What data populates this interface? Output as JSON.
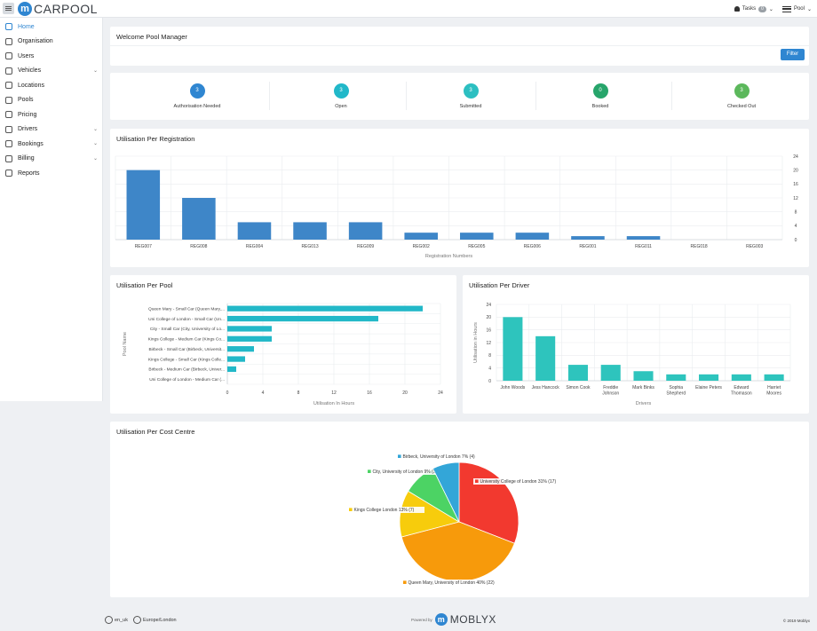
{
  "header": {
    "logo_letter": "m",
    "logo_text": "CARPOOL",
    "tasks_label": "Tasks",
    "tasks_count": "0",
    "tasks_chevron": "⌄",
    "pool_label": "Pool",
    "pool_chevron": "⌄"
  },
  "sidebar": {
    "items": [
      {
        "label": "Home",
        "icon": "home-icon",
        "active": true,
        "chevron": ""
      },
      {
        "label": "Organisation",
        "icon": "building-icon",
        "chevron": ""
      },
      {
        "label": "Users",
        "icon": "user-icon",
        "chevron": ""
      },
      {
        "label": "Vehicles",
        "icon": "car-icon",
        "chevron": "⌄"
      },
      {
        "label": "Locations",
        "icon": "location-pin-icon",
        "chevron": ""
      },
      {
        "label": "Pools",
        "icon": "car-icon",
        "chevron": ""
      },
      {
        "label": "Pricing",
        "icon": "card-icon",
        "chevron": ""
      },
      {
        "label": "Drivers",
        "icon": "users-icon",
        "chevron": "⌄"
      },
      {
        "label": "Bookings",
        "icon": "calendar-icon",
        "chevron": "⌄"
      },
      {
        "label": "Billing",
        "icon": "billing-icon",
        "chevron": "⌄"
      },
      {
        "label": "Reports",
        "icon": "chart-icon",
        "chevron": ""
      }
    ]
  },
  "welcome": {
    "title": "Welcome Pool Manager",
    "filter_label": "Filter"
  },
  "stats": [
    {
      "value": "3",
      "label": "Authorisation Needed",
      "color": "#2f86d1"
    },
    {
      "value": "3",
      "label": "Open",
      "color": "#21b8c9"
    },
    {
      "value": "3",
      "label": "Submitted",
      "color": "#2cbfc1"
    },
    {
      "value": "0",
      "label": "Booked",
      "color": "#27a56b"
    },
    {
      "value": "3",
      "label": "Checked Out",
      "color": "#5cb85c"
    }
  ],
  "colors": {
    "bar_blue": "#3e86c8",
    "bar_teal": "#22b8c8",
    "bar_driver": "#2ec4bd",
    "grid": "#e9ecef"
  },
  "chart_data": [
    {
      "type": "bar",
      "title": "Utilisation Per Registration",
      "xlabel": "Registration Numbers",
      "ylabel": "",
      "categories": [
        "REG007",
        "REG008",
        "REG004",
        "REG013",
        "REG009",
        "REG002",
        "REG005",
        "REG006",
        "REG001",
        "REG011",
        "REG018",
        "REG003"
      ],
      "values": [
        20,
        12,
        5,
        5,
        5,
        2,
        2,
        2,
        1,
        1,
        0,
        0
      ],
      "yticks": [
        "0",
        "4",
        "8",
        "12",
        "16",
        "20",
        "24"
      ],
      "ylim": [
        0,
        24
      ],
      "grid": true
    },
    {
      "type": "bar",
      "orientation": "horizontal",
      "title": "Utilisation Per Pool",
      "xlabel": "Utilisation In Hours",
      "ylabel": "Pool Name",
      "categories": [
        "Queen Mary - Small Car (Queen Mary,...",
        "Uni College of London - Small Car (Un...",
        "City - Small Car (City, University of Lo...",
        "Kings College - Medium Car (Kings Co...",
        "Birbeck - Small Car (Birbeck, Universit...",
        "Kings College - Small Car (Kings Colle...",
        "Birbeck - Medium Car (Birbeck, Univer...",
        "Uni College of London - Medium Car (..."
      ],
      "values": [
        22,
        17,
        5,
        5,
        3,
        2,
        1,
        0
      ],
      "xticks": [
        "0",
        "4",
        "8",
        "12",
        "16",
        "20",
        "24"
      ],
      "xlim": [
        0,
        24
      ],
      "grid": true
    },
    {
      "type": "bar",
      "title": "Utilisation Per Driver",
      "xlabel": "Drivers",
      "ylabel": "Utilisation in Hours",
      "categories": [
        [
          "John Woods"
        ],
        [
          "Jess Hancock"
        ],
        [
          "Simon Cook"
        ],
        [
          "Freddie",
          "Johnson"
        ],
        [
          "Mark Binks"
        ],
        [
          "Sophia",
          "Shepherd"
        ],
        [
          "Elaine Peters"
        ],
        [
          "Edward",
          "Thomason"
        ],
        [
          "Harriet",
          "Moores"
        ]
      ],
      "values": [
        20,
        14,
        5,
        5,
        3,
        2,
        2,
        2,
        2
      ],
      "yticks": [
        "0",
        "4",
        "8",
        "12",
        "16",
        "20",
        "24"
      ],
      "ylim": [
        0,
        24
      ],
      "grid": true
    },
    {
      "type": "pie",
      "title": "Utilisation Per Cost Centre",
      "slices": [
        {
          "label": "University College of London 31% (17)",
          "value": 17,
          "color": "#f2392f"
        },
        {
          "label": "Queen Mary, University of London 40% (22)",
          "value": 22,
          "color": "#f79a0b"
        },
        {
          "label": "Kings College London 13% (7)",
          "value": 7,
          "color": "#f7cc0c"
        },
        {
          "label": "City, University of London 9% (5)",
          "value": 5,
          "color": "#4cd364"
        },
        {
          "label": "Birbeck, University of London 7% (4)",
          "value": 4,
          "color": "#33a6d8"
        }
      ]
    }
  ],
  "footer": {
    "locale": "en_uk",
    "timezone": "Europe/London",
    "powered_by": "Powered by",
    "brand_letter": "m",
    "brand": "MOBLYX",
    "copyright": "© 2019 Moblyx"
  }
}
